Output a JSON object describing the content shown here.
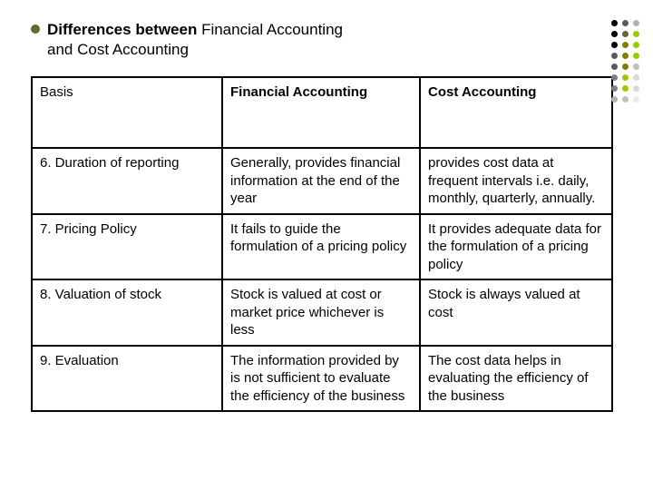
{
  "title": {
    "bold1": "Differences between",
    "plain1": " Financial Accounting",
    "plain2": " and Cost Accounting",
    "bullet_color": "#666633"
  },
  "table": {
    "border_color": "#000000",
    "header_fontweight": 700,
    "columns": [
      "Basis",
      "Financial Accounting",
      "Cost Accounting"
    ],
    "rows": [
      {
        "basis": "6. Duration of reporting",
        "fa": " Generally,    provides financial information at the end of the  year",
        "ca": " provides cost data  at frequent intervals i.e. daily, monthly, quarterly, annually."
      },
      {
        "basis": "7. Pricing Policy",
        "fa": " It fails  to guide the formulation of a pricing policy",
        "ca": " It provides adequate data for the formulation of a pricing policy"
      },
      {
        "basis": "8. Valuation of  stock",
        "fa": " Stock  is valued at cost or market price whichever is less",
        "ca": " Stock is always valued at cost"
      },
      {
        "basis": "9. Evaluation",
        "fa": " The information provided by    is not sufficient to evaluate the efficiency of the business",
        "ca": " The cost data helps in evaluating the efficiency of the business"
      }
    ]
  },
  "dots": {
    "colors": [
      "#000000",
      "#595959",
      "#b2b2b2",
      "#000000",
      "#666633",
      "#99cc00",
      "#000000",
      "#808000",
      "#99cc00",
      "#595959",
      "#808000",
      "#99cc00",
      "#595959",
      "#808000",
      "#c0c0c0",
      "#808080",
      "#99cc00",
      "#d9d9d9",
      "#808080",
      "#99cc00",
      "#d9d9d9",
      "#b2b2b2",
      "#c0c0c0",
      "#ececec"
    ]
  }
}
